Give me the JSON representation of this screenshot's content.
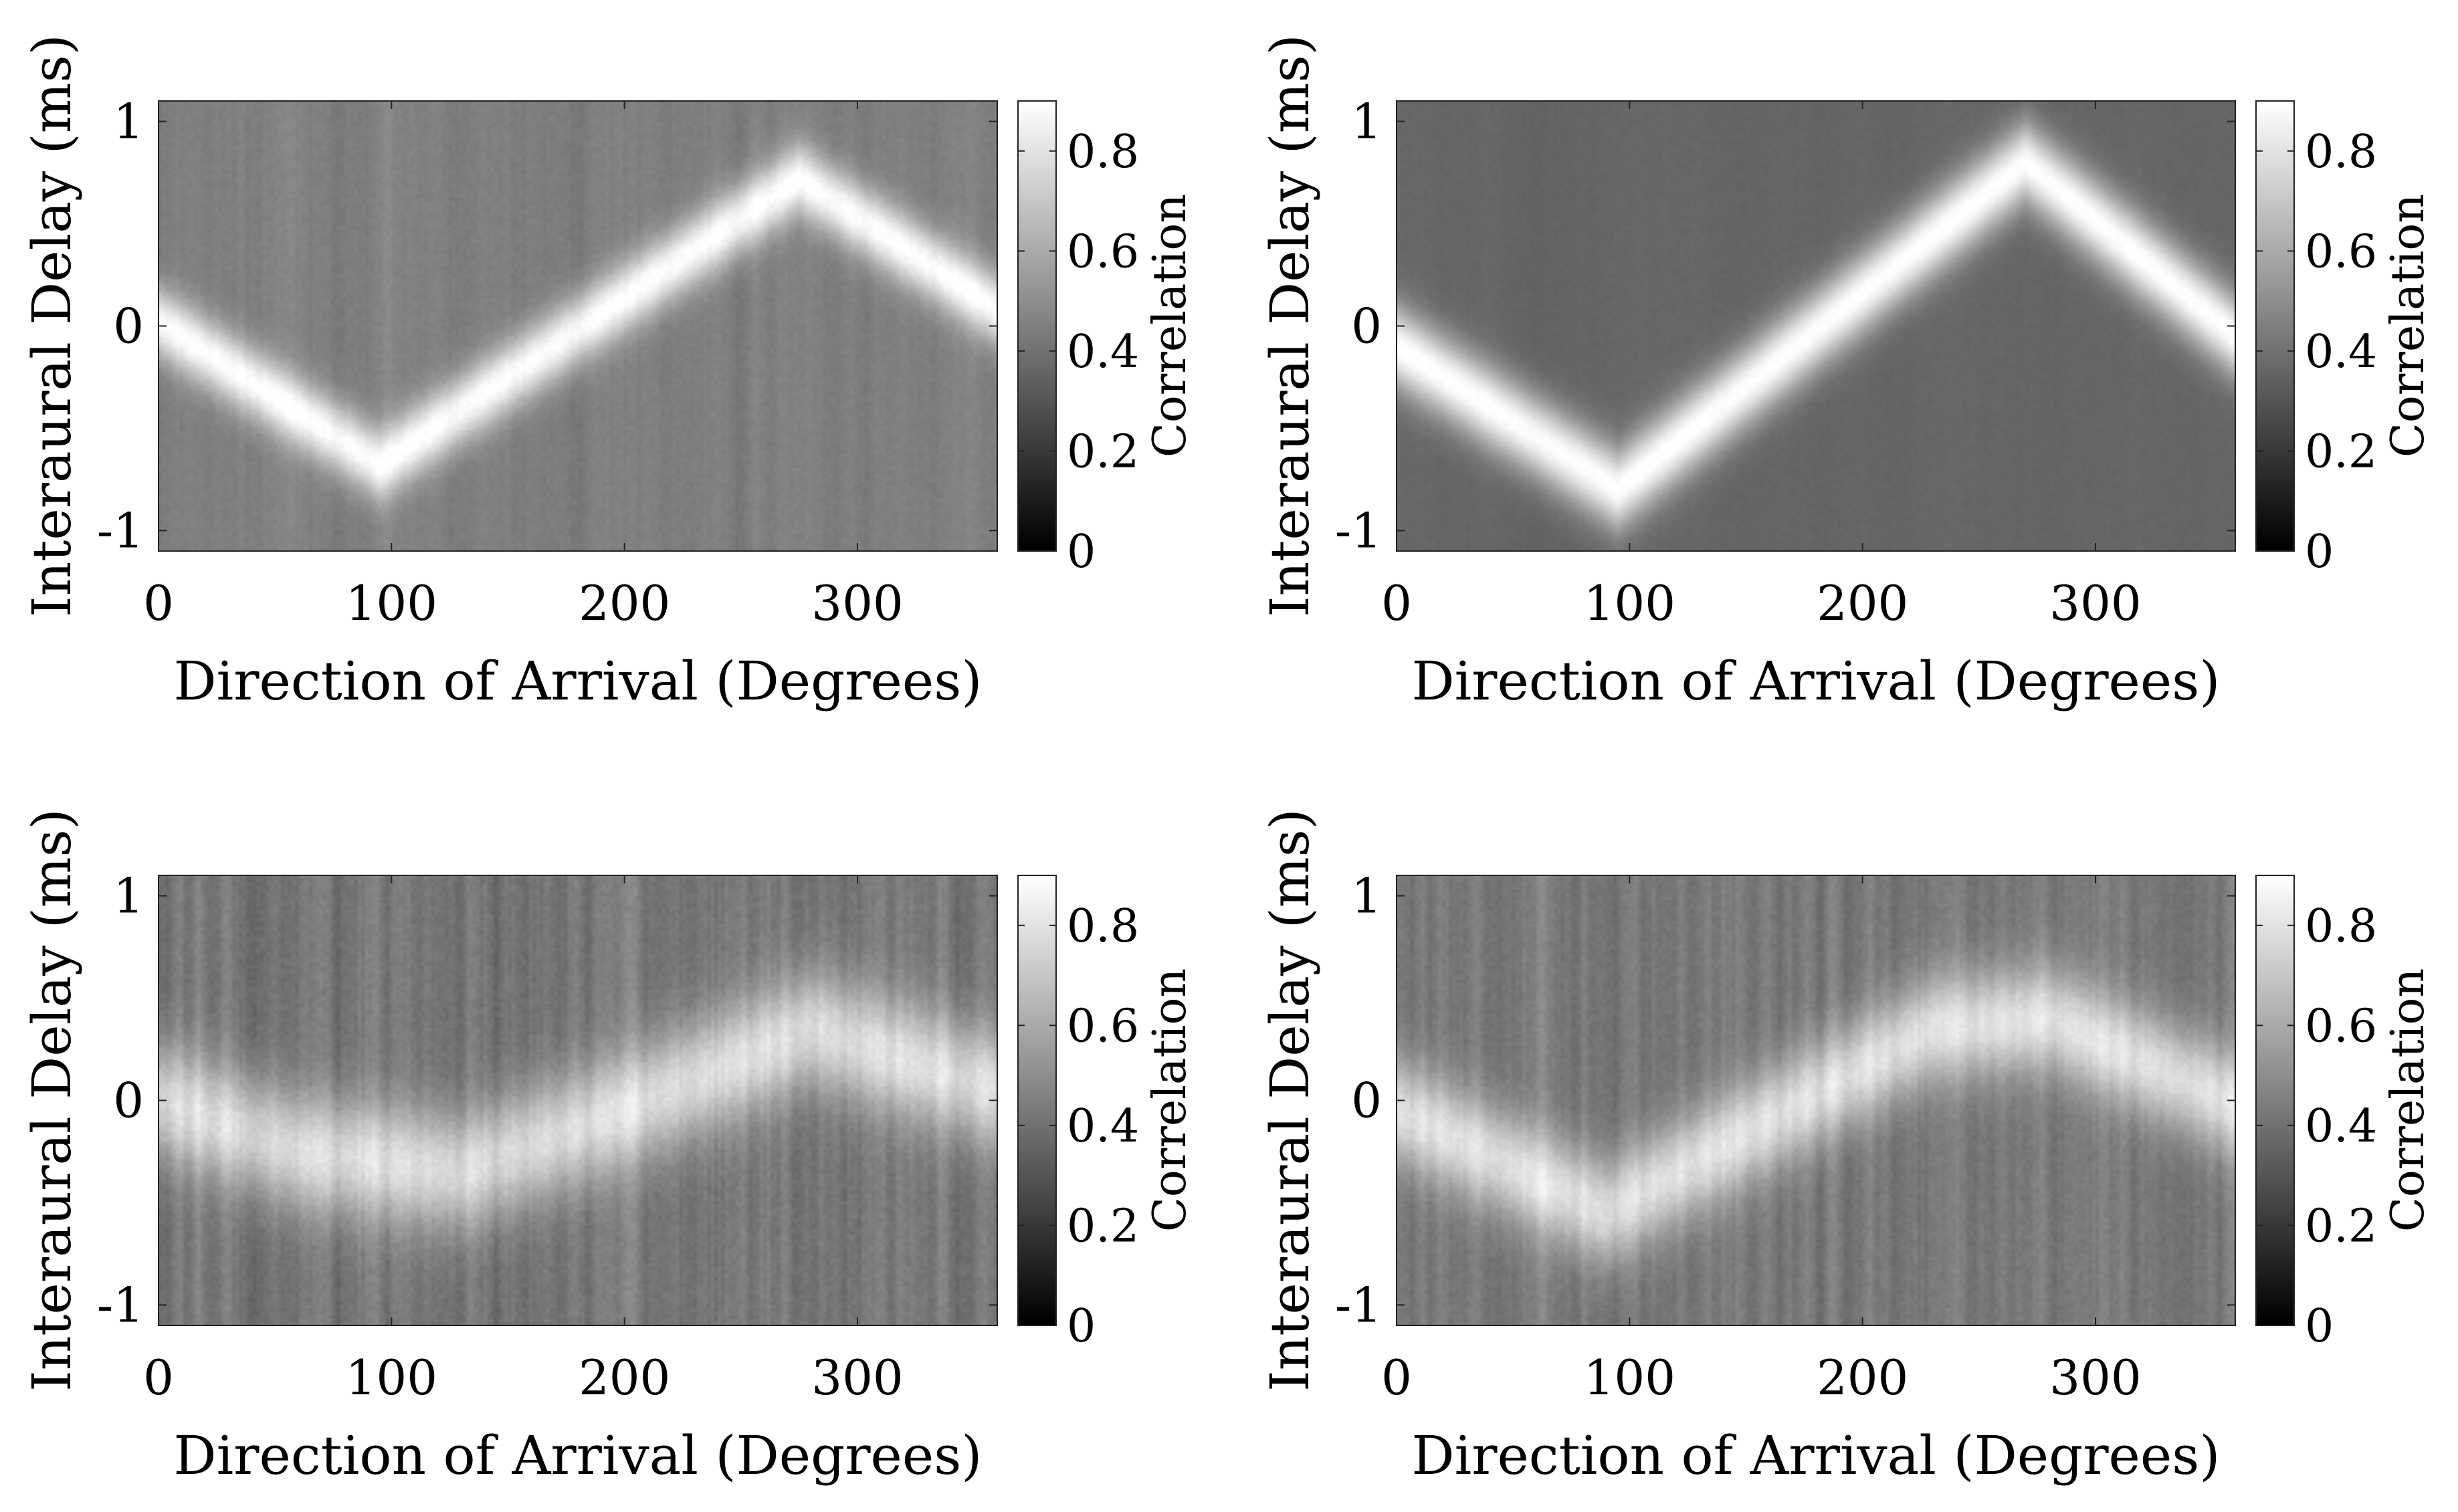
{
  "chart_data": [
    {
      "type": "heatmap",
      "panel": "top-left",
      "title": "",
      "xlabel": "Direction of Arrival (Degrees)",
      "ylabel": "Interaural Delay (ms)",
      "xlim": [
        0,
        360
      ],
      "ylim": [
        -1.1,
        1.1
      ],
      "xticks": [
        "0",
        "100",
        "200",
        "300"
      ],
      "yticks": [
        "-1",
        "0",
        "1"
      ],
      "colorbar": {
        "label": "Correlation",
        "range": [
          0,
          0.9
        ],
        "ticks": [
          "0",
          "0.2",
          "0.4",
          "0.6",
          "0.8"
        ]
      },
      "ridge": {
        "direction": [
          0,
          95,
          275,
          360
        ],
        "delay": [
          0.02,
          -0.68,
          0.72,
          0.08
        ],
        "peak": 0.9,
        "width": 0.12
      },
      "background": 0.45,
      "noise": 0.05,
      "smooth": 2
    },
    {
      "type": "heatmap",
      "panel": "top-right",
      "title": "",
      "xlabel": "Direction of Arrival (Degrees)",
      "ylabel": "Interaural Delay (ms)",
      "xlim": [
        0,
        360
      ],
      "ylim": [
        -1.1,
        1.1
      ],
      "xticks": [
        "0",
        "100",
        "200",
        "300"
      ],
      "yticks": [
        "-1",
        "0",
        "1"
      ],
      "colorbar": {
        "label": "Correlation",
        "range": [
          0,
          0.9
        ],
        "ticks": [
          "0",
          "0.2",
          "0.4",
          "0.6",
          "0.8"
        ]
      },
      "ridge": {
        "direction": [
          0,
          95,
          270,
          360
        ],
        "delay": [
          -0.1,
          -0.8,
          0.8,
          -0.05
        ],
        "peak": 0.9,
        "width": 0.14
      },
      "background": 0.36,
      "noise": 0.03,
      "smooth": 6
    },
    {
      "type": "heatmap",
      "panel": "bottom-left",
      "title": "",
      "xlabel": "Direction of Arrival (Degrees)",
      "ylabel": "Interaural Delay (ms)",
      "xlim": [
        0,
        360
      ],
      "ylim": [
        -1.1,
        1.1
      ],
      "xticks": [
        "0",
        "100",
        "200",
        "300"
      ],
      "yticks": [
        "-1",
        "0",
        "1"
      ],
      "colorbar": {
        "label": "Correlation",
        "range": [
          0,
          0.9
        ],
        "ticks": [
          "0",
          "0.2",
          "0.4",
          "0.6",
          "0.8"
        ]
      },
      "ridge": {
        "direction": [
          0,
          60,
          130,
          200,
          280,
          360
        ],
        "delay": [
          0.0,
          -0.25,
          -0.35,
          -0.05,
          0.35,
          0.05
        ],
        "peak": 0.78,
        "width": 0.2
      },
      "background": 0.42,
      "noise": 0.08,
      "smooth": 1
    },
    {
      "type": "heatmap",
      "panel": "bottom-right",
      "title": "",
      "xlabel": "Direction of Arrival (Degrees)",
      "ylabel": "Interaural Delay (ms)",
      "xlim": [
        0,
        360
      ],
      "ylim": [
        -1.1,
        1.1
      ],
      "xticks": [
        "0",
        "100",
        "200",
        "300"
      ],
      "yticks": [
        "-1",
        "0",
        "1"
      ],
      "colorbar": {
        "label": "Correlation",
        "range": [
          0,
          0.9
        ],
        "ticks": [
          "0",
          "0.2",
          "0.4",
          "0.6",
          "0.8"
        ]
      },
      "ridge": {
        "direction": [
          0,
          90,
          230,
          280,
          360
        ],
        "delay": [
          -0.05,
          -0.55,
          0.35,
          0.4,
          -0.02
        ],
        "peak": 0.8,
        "width": 0.18
      },
      "background": 0.43,
      "noise": 0.07,
      "smooth": 1
    }
  ]
}
